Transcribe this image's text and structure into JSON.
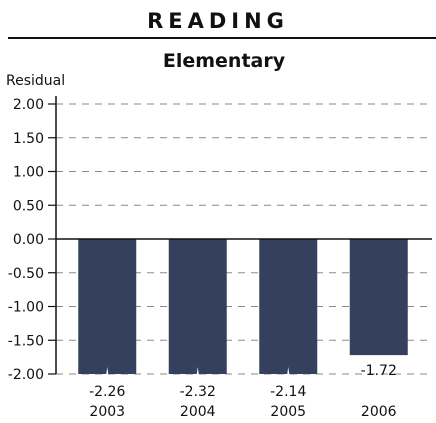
{
  "header": {
    "section_title": "READING"
  },
  "chart_data": {
    "type": "bar",
    "title": "Elementary",
    "ylabel": "Residual",
    "xlabel": "",
    "categories": [
      "2003",
      "2004",
      "2005",
      "2006"
    ],
    "values": [
      -2.26,
      -2.32,
      -2.14,
      -1.72
    ],
    "value_labels": [
      "-2.26",
      "-2.32",
      "-2.14",
      "-1.72"
    ],
    "ylim": [
      -2.0,
      2.0
    ],
    "yticks": [
      2.0,
      1.5,
      1.0,
      0.5,
      0.0,
      -0.5,
      -1.0,
      -1.5,
      -2.0
    ],
    "ytick_labels": [
      "2.00",
      "1.50",
      "1.00",
      "0.50",
      "0.00",
      "-0.50",
      "-1.00",
      "-1.50",
      "-2.00"
    ],
    "grid": true,
    "legend": "none",
    "bars_clipped_at_axis_min": true,
    "colors": {
      "bar": "#34405e",
      "grid": "#8a8a8a",
      "axis": "#111111",
      "text": "#111111"
    }
  }
}
